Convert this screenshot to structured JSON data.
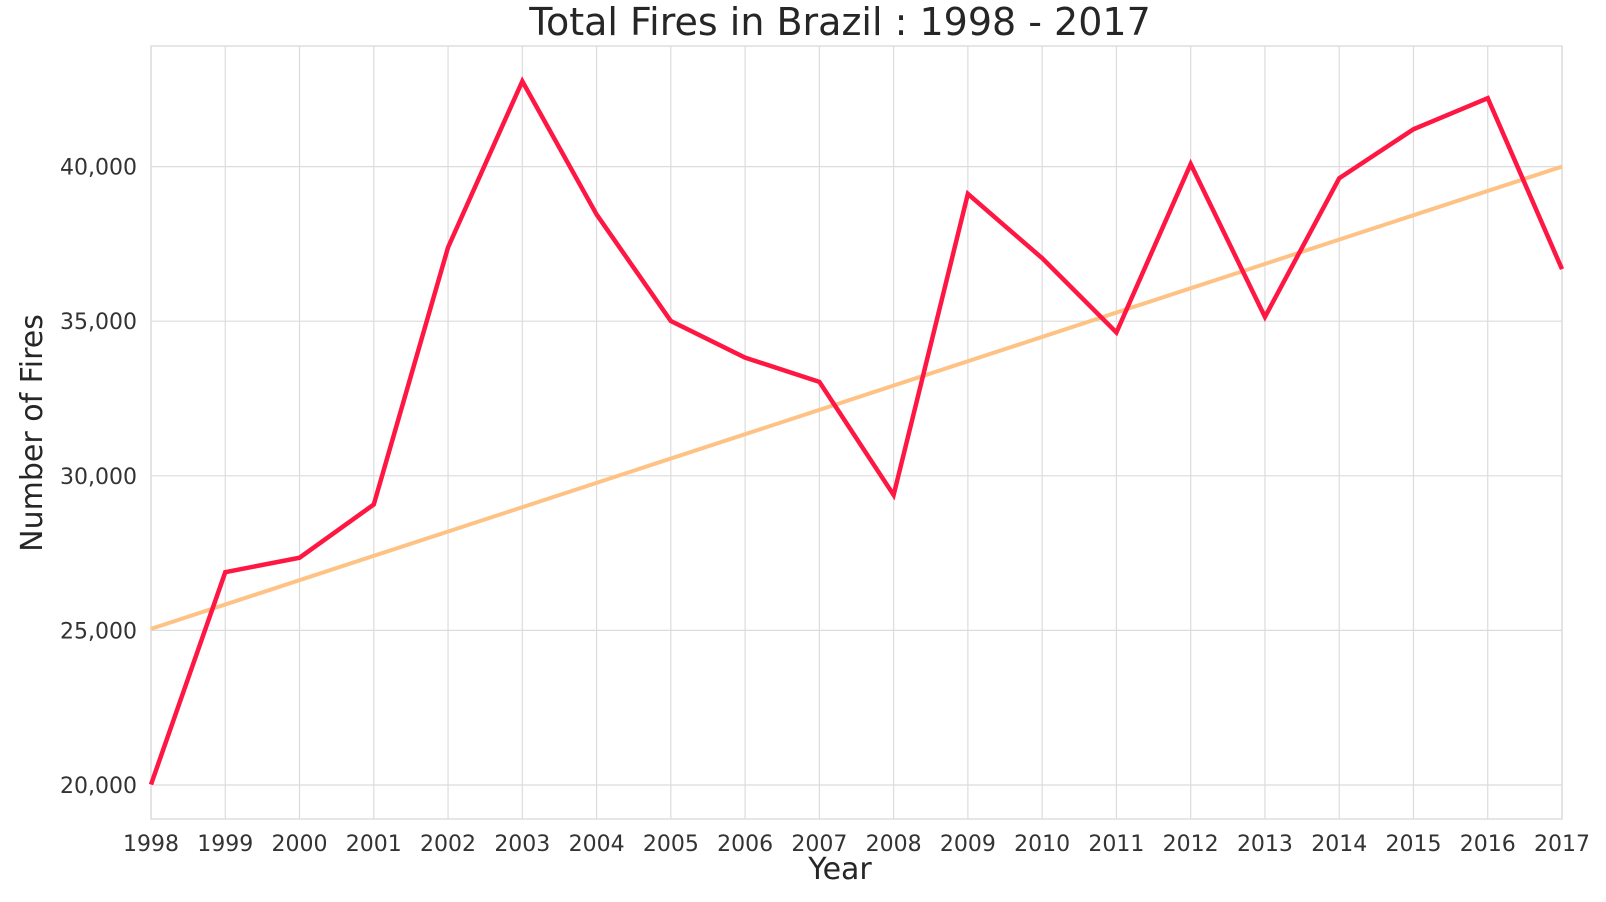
{
  "chart_data": {
    "type": "line",
    "title": "Total Fires in Brazil : 1998 - 2017",
    "xlabel": "Year",
    "ylabel": "Number of Fires",
    "x": [
      1998,
      1999,
      2000,
      2001,
      2002,
      2003,
      2004,
      2005,
      2006,
      2007,
      2008,
      2009,
      2010,
      2011,
      2012,
      2013,
      2014,
      2015,
      2016,
      2017
    ],
    "x_tick_labels": [
      "1998",
      "1999",
      "2000",
      "2001",
      "2002",
      "2003",
      "2004",
      "2005",
      "2006",
      "2007",
      "2008",
      "2009",
      "2010",
      "2011",
      "2012",
      "2013",
      "2014",
      "2015",
      "2016",
      "2017"
    ],
    "y_ticks": [
      20000,
      25000,
      30000,
      35000,
      40000
    ],
    "y_tick_labels": [
      "20,000",
      "25,000",
      "30,000",
      "35,000",
      "40,000"
    ],
    "xlim": [
      1998,
      2017
    ],
    "ylim": [
      18900,
      43900
    ],
    "grid": true,
    "series": [
      {
        "values": [
          20014,
          26882,
          27351,
          29072,
          37388,
          42761,
          38452,
          35005,
          33822,
          33037,
          29379,
          39117,
          37037,
          34634,
          40084,
          35138,
          39621,
          41208,
          42212,
          36685
        ],
        "color": "#ff1744"
      },
      {
        "values": [
          25050,
          40000
        ],
        "x": [
          1998,
          2017
        ],
        "color": "#ffc285"
      }
    ]
  }
}
